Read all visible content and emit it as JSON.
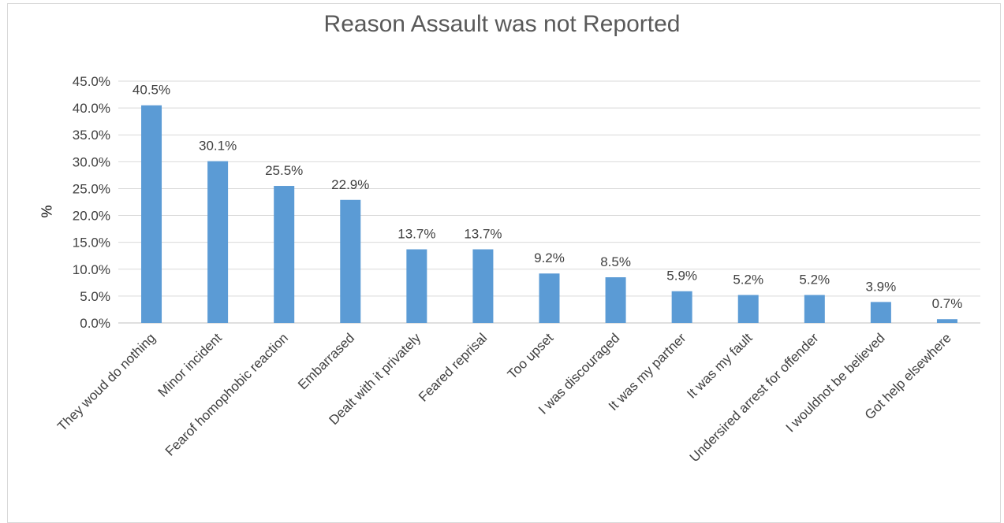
{
  "chart_data": {
    "type": "bar",
    "title": "Reason Assault was not Reported",
    "ylabel": "%",
    "xlabel": "",
    "ylim": [
      0,
      45
    ],
    "ytick_step": 5,
    "ytick_labels": [
      "0.0%",
      "5.0%",
      "10.0%",
      "15.0%",
      "20.0%",
      "25.0%",
      "30.0%",
      "35.0%",
      "40.0%",
      "45.0%"
    ],
    "grid": true,
    "legend": "none",
    "bar_color": "#5b9bd5",
    "categories": [
      "They woud do nothing",
      "Minor incident",
      "Fearof homophobic reaction",
      "Embarrased",
      "Dealt with it privately",
      "Feared reprisal",
      "Too upset",
      "I was discouraged",
      "It was my partner",
      "It was my fault",
      "Undersired arrest for offender",
      "I wouldnot be believed",
      "Got help elsewhere"
    ],
    "values": [
      40.5,
      30.1,
      25.5,
      22.9,
      13.7,
      13.7,
      9.2,
      8.5,
      5.9,
      5.2,
      5.2,
      3.9,
      0.7
    ],
    "data_labels": [
      "40.5%",
      "30.1%",
      "25.5%",
      "22.9%",
      "13.7%",
      "13.7%",
      "9.2%",
      "8.5%",
      "5.9%",
      "5.2%",
      "5.2%",
      "3.9%",
      "0.7%"
    ]
  }
}
